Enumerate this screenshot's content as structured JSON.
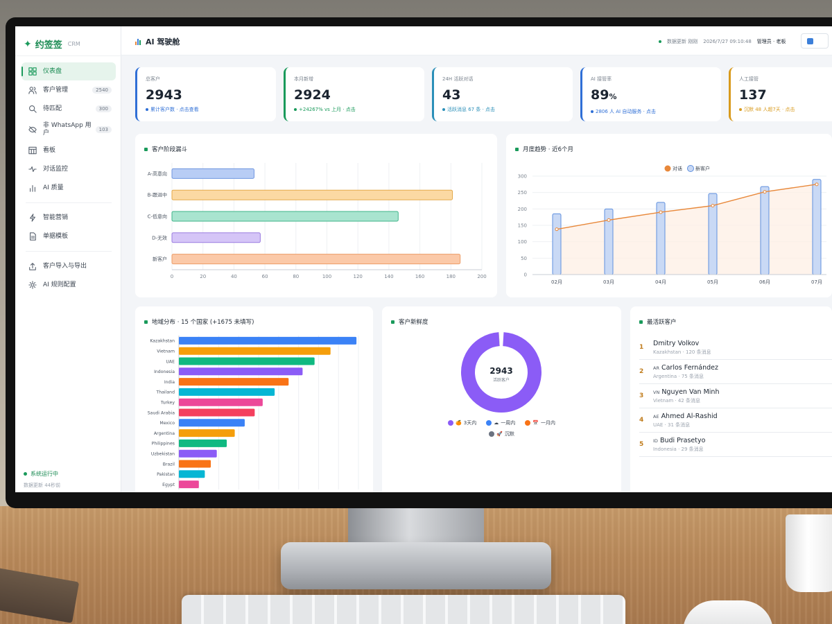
{
  "app": {
    "logo_mark": "✦",
    "name": "约签签",
    "sub": "CRM"
  },
  "header": {
    "title": "AI 驾驶舱",
    "update_label": "数据更新 刚刚",
    "datetime": "2026/7/27 09:10:48",
    "user": "管理员 · 老板"
  },
  "sidebar": {
    "items": [
      {
        "label": "仪表盘",
        "icon": "grid-icon",
        "badge": "",
        "active": true
      },
      {
        "label": "客户管理",
        "icon": "users-icon",
        "badge": "2540"
      },
      {
        "label": "待匹配",
        "icon": "search-icon",
        "badge": "300"
      },
      {
        "label": "非 WhatsApp 用户",
        "icon": "eye-off-icon",
        "badge": "103"
      },
      {
        "label": "看板",
        "icon": "board-icon",
        "badge": ""
      },
      {
        "label": "对话监控",
        "icon": "pulse-icon",
        "badge": ""
      },
      {
        "label": "AI 质量",
        "icon": "bar-icon",
        "badge": ""
      },
      {
        "label": "智能营销",
        "icon": "bolt-icon",
        "badge": ""
      },
      {
        "label": "单据模板",
        "icon": "doc-icon",
        "badge": ""
      },
      {
        "label": "客户导入与导出",
        "icon": "upload-icon",
        "badge": ""
      },
      {
        "label": "AI 规则配置",
        "icon": "gear-icon",
        "badge": ""
      }
    ],
    "status": "系统运行中",
    "updated": "数据更新 44秒前"
  },
  "stats": [
    {
      "label": "总客户",
      "value": "2943",
      "suffix": "",
      "sub": "累计客户数 · 点击查看",
      "color": "#2f6fd6"
    },
    {
      "label": "本月新增",
      "value": "2924",
      "suffix": "",
      "sub": "+24267% vs 上月 · 点击",
      "color": "#1a9a5b"
    },
    {
      "label": "24H 活跃对话",
      "value": "43",
      "suffix": "",
      "sub": "活跃消息 67 条 · 点击",
      "color": "#2b8fb8"
    },
    {
      "label": "AI 接管率",
      "value": "89",
      "suffix": "%",
      "sub": "2806 人 AI 自动服务 · 点击",
      "color": "#2f6fd6"
    },
    {
      "label": "人工接管",
      "value": "137",
      "suffix": "",
      "sub": "沉默 48 人超7天 · 点击",
      "color": "#d89a1c"
    }
  ],
  "funnel": {
    "title": "客户阶段漏斗",
    "chart_data": {
      "type": "bar",
      "orientation": "horizontal",
      "categories": [
        "A-高意向",
        "B-跟进中",
        "C-低意向",
        "D-无效",
        "新客户"
      ],
      "values": [
        53,
        181,
        146,
        57,
        186
      ],
      "colors": [
        "#b8cdf5",
        "#fbd9a3",
        "#a9e4cf",
        "#d5c5f7",
        "#fbc9a8"
      ],
      "borders": [
        "#6f96e0",
        "#e4a94a",
        "#3fb58a",
        "#9a7be0",
        "#ec9c66"
      ],
      "xlim": [
        0,
        200
      ],
      "xticks": [
        0,
        20,
        40,
        60,
        80,
        100,
        120,
        140,
        160,
        180,
        200
      ]
    }
  },
  "trend": {
    "title": "月度趋势 · 近6个月",
    "chart_data": {
      "type": "bar+line",
      "categories": [
        "02月",
        "03月",
        "04月",
        "05月",
        "06月",
        "07月"
      ],
      "series": [
        {
          "name": "对话",
          "type": "line",
          "values": [
            138,
            166,
            190,
            210,
            252,
            275
          ],
          "color": "#e8883a"
        },
        {
          "name": "新客户",
          "type": "bar",
          "values": [
            185,
            200,
            220,
            247,
            268,
            290
          ],
          "color": "#c9d9f5"
        }
      ],
      "ylim": [
        0,
        300
      ],
      "yticks": [
        0,
        50,
        100,
        150,
        200,
        250,
        300
      ]
    }
  },
  "region": {
    "title": "地域分布 · 15 个国家 (+1675 未填写)",
    "chart_data": {
      "type": "bar",
      "orientation": "horizontal",
      "categories": [
        "Kazakhstan",
        "Vietnam",
        "UAE",
        "Indonesia",
        "India",
        "Thailand",
        "Turkey",
        "Saudi Arabia",
        "Mexico",
        "Argentina",
        "Philippines",
        "Uzbekistan",
        "Brazil",
        "Pakistan",
        "Egypt"
      ],
      "values": [
        89,
        76,
        68,
        62,
        55,
        48,
        42,
        38,
        33,
        28,
        24,
        19,
        16,
        13,
        10
      ],
      "colors": [
        "#3b82f6",
        "#f59e0b",
        "#10b981",
        "#8b5cf6",
        "#f97316",
        "#06b6d4",
        "#ec4899",
        "#f43f5e",
        "#3b82f6",
        "#f59e0b",
        "#10b981",
        "#8b5cf6",
        "#f97316",
        "#06b6d4",
        "#ec4899"
      ],
      "xlim": [
        0,
        90
      ],
      "xticks": [
        0,
        10,
        20,
        30,
        40,
        50,
        60,
        70,
        80,
        90
      ]
    }
  },
  "freshness": {
    "title": "客户新鲜度",
    "center_value": "2943",
    "center_label": "活跃客户",
    "chart_data": {
      "type": "pie",
      "categories": [
        "3天内",
        "一周内",
        "一月内",
        "沉默"
      ],
      "values": [
        2940,
        1,
        1,
        1
      ],
      "colors": [
        "#8b5cf6",
        "#3b82f6",
        "#f97316",
        "#6b7280"
      ],
      "icons": [
        "🍊",
        "☁",
        "📅",
        "🚀"
      ]
    }
  },
  "active_customers": {
    "title": "最活跃客户",
    "items": [
      {
        "rank": "1",
        "cc": "",
        "name": "Dmitry Volkov",
        "meta": "Kazakhstan · 120 条消息"
      },
      {
        "rank": "2",
        "cc": "AR",
        "name": "Carlos Fernández",
        "meta": "Argentina · 75 条消息"
      },
      {
        "rank": "3",
        "cc": "VN",
        "name": "Nguyen Van Minh",
        "meta": "Vietnam · 42 条消息"
      },
      {
        "rank": "4",
        "cc": "AE",
        "name": "Ahmed Al-Rashid",
        "meta": "UAE · 31 条消息"
      },
      {
        "rank": "5",
        "cc": "ID",
        "name": "Budi Prasetyo",
        "meta": "Indonesia · 29 条消息"
      }
    ]
  }
}
